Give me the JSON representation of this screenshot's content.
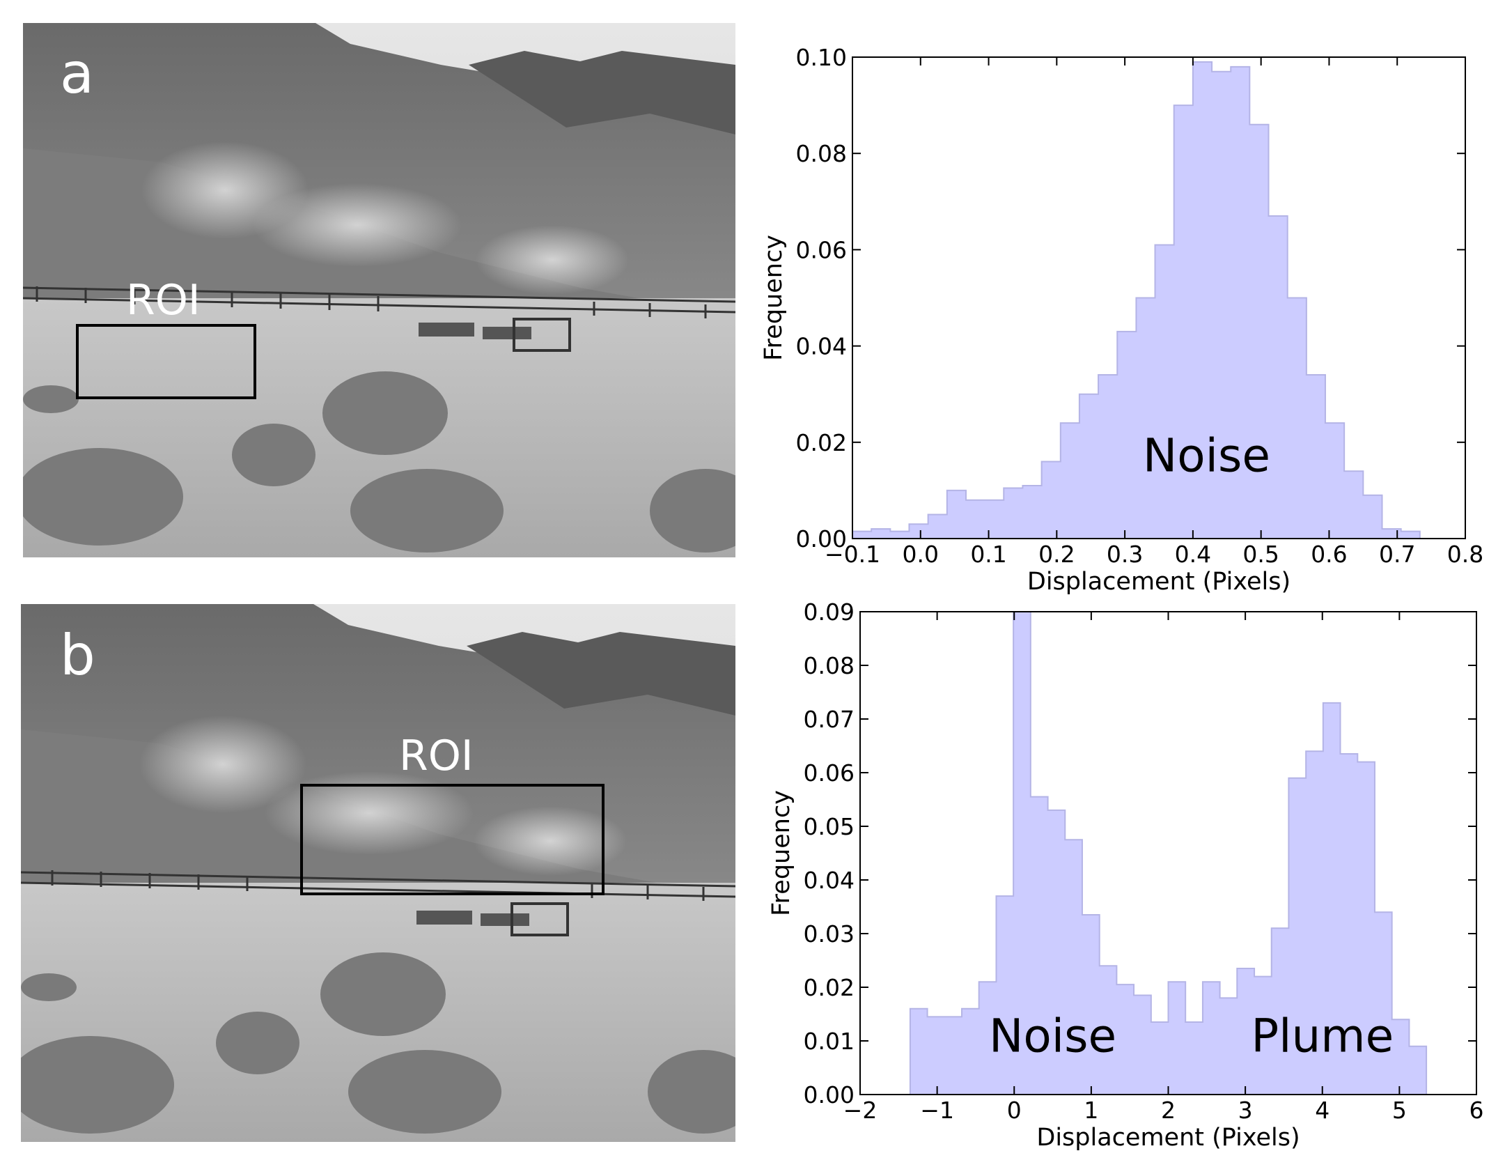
{
  "panels": [
    {
      "letter": "a",
      "roi_label": "ROI"
    },
    {
      "letter": "b",
      "roi_label": "ROI"
    }
  ],
  "chart_data": [
    {
      "type": "bar",
      "style": "step-histogram",
      "fill_color": "#ccccff",
      "edge_color": "#b4b4e6",
      "xlabel": "Displacement (Pixels)",
      "ylabel": "Frequency",
      "xlim": [
        -0.1,
        0.8
      ],
      "ylim": [
        0.0,
        0.1
      ],
      "xticks": [
        "−0.1",
        "0.0",
        "0.1",
        "0.2",
        "0.3",
        "0.4",
        "0.5",
        "0.6",
        "0.7",
        "0.8"
      ],
      "xtick_values": [
        -0.1,
        0.0,
        0.1,
        0.2,
        0.3,
        0.4,
        0.5,
        0.6,
        0.7,
        0.8
      ],
      "yticks": [
        "0.00",
        "0.02",
        "0.04",
        "0.06",
        "0.08",
        "0.10"
      ],
      "ytick_values": [
        0.0,
        0.02,
        0.04,
        0.06,
        0.08,
        0.1
      ],
      "grid": false,
      "bin_edges": [
        -0.1,
        -0.0722,
        -0.0444,
        -0.0167,
        0.0111,
        0.0389,
        0.0667,
        0.0944,
        0.1222,
        0.15,
        0.1778,
        0.2056,
        0.2333,
        0.2611,
        0.2889,
        0.3167,
        0.3444,
        0.3722,
        0.4,
        0.4278,
        0.4556,
        0.4833,
        0.5111,
        0.5389,
        0.5667,
        0.5944,
        0.6222,
        0.65,
        0.6778,
        0.7056,
        0.7333
      ],
      "values": [
        0.0015,
        0.002,
        0.0015,
        0.003,
        0.005,
        0.01,
        0.008,
        0.008,
        0.0105,
        0.011,
        0.016,
        0.024,
        0.03,
        0.034,
        0.043,
        0.05,
        0.061,
        0.09,
        0.099,
        0.097,
        0.098,
        0.086,
        0.067,
        0.05,
        0.034,
        0.024,
        0.014,
        0.009,
        0.002,
        0.0015
      ],
      "annotations": [
        {
          "text": "Noise",
          "x": 0.42,
          "y": 0.014
        }
      ]
    },
    {
      "type": "bar",
      "style": "step-histogram",
      "fill_color": "#ccccff",
      "edge_color": "#b4b4e6",
      "xlabel": "Displacement (Pixels)",
      "ylabel": "Frequency",
      "xlim": [
        -2,
        6
      ],
      "ylim": [
        0.0,
        0.09
      ],
      "xticks": [
        "−2",
        "−1",
        "0",
        "1",
        "2",
        "3",
        "4",
        "5",
        "6"
      ],
      "xtick_values": [
        -2,
        -1,
        0,
        1,
        2,
        3,
        4,
        5,
        6
      ],
      "yticks": [
        "0.00",
        "0.01",
        "0.02",
        "0.03",
        "0.04",
        "0.05",
        "0.06",
        "0.07",
        "0.08",
        "0.09"
      ],
      "ytick_values": [
        0.0,
        0.01,
        0.02,
        0.03,
        0.04,
        0.05,
        0.06,
        0.07,
        0.08,
        0.09
      ],
      "grid": false,
      "bin_edges": [
        -1.35,
        -1.127,
        -0.903,
        -0.68,
        -0.457,
        -0.233,
        -0.01,
        0.213,
        0.437,
        0.66,
        0.883,
        1.107,
        1.33,
        1.553,
        1.777,
        2.0,
        2.223,
        2.447,
        2.67,
        2.893,
        3.117,
        3.34,
        3.563,
        3.787,
        4.01,
        4.233,
        4.457,
        4.68,
        4.903,
        5.127,
        5.35
      ],
      "values": [
        0.016,
        0.0145,
        0.0145,
        0.016,
        0.021,
        0.037,
        0.09,
        0.0555,
        0.053,
        0.0475,
        0.0335,
        0.024,
        0.0205,
        0.0185,
        0.0135,
        0.021,
        0.0135,
        0.021,
        0.018,
        0.0235,
        0.022,
        0.031,
        0.059,
        0.064,
        0.073,
        0.0635,
        0.062,
        0.034,
        0.014,
        0.009
      ],
      "annotations": [
        {
          "text": "Noise",
          "x": 0.5,
          "y": 0.008
        },
        {
          "text": "Plume",
          "x": 4.0,
          "y": 0.008
        }
      ]
    }
  ]
}
